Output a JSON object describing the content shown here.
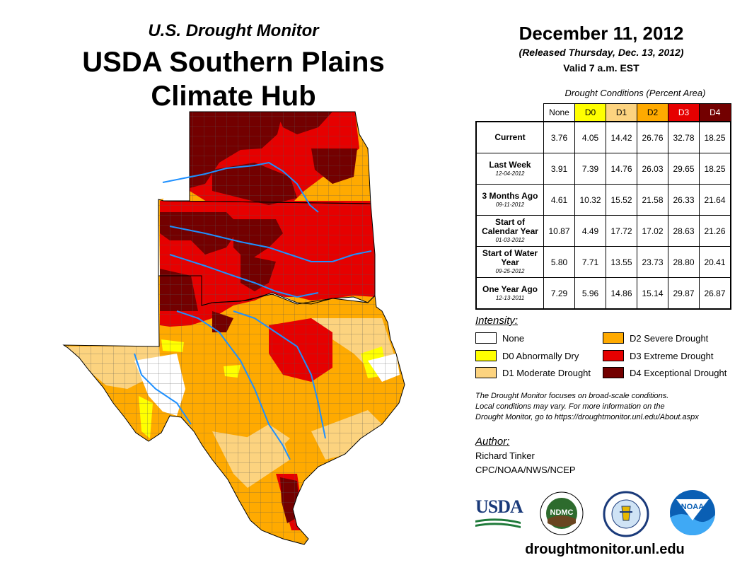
{
  "header": {
    "subtitle": "U.S. Drought Monitor",
    "title_line1": "USDA Southern Plains",
    "title_line2": "Climate Hub"
  },
  "date": {
    "main": "December 11, 2012",
    "released": "(Released Thursday, Dec. 13, 2012)",
    "valid": "Valid 7 a.m. EST"
  },
  "table": {
    "caption": "Drought Conditions (Percent Area)",
    "columns": [
      {
        "label": "None",
        "color": "#ffffff"
      },
      {
        "label": "D0",
        "color": "#ffff00"
      },
      {
        "label": "D1",
        "color": "#fcd37f"
      },
      {
        "label": "D2",
        "color": "#ffaa00"
      },
      {
        "label": "D3",
        "color": "#e60000"
      },
      {
        "label": "D4",
        "color": "#730000"
      }
    ],
    "rows": [
      {
        "label": "Current",
        "sub": "",
        "values": [
          "3.76",
          "4.05",
          "14.42",
          "26.76",
          "32.78",
          "18.25"
        ]
      },
      {
        "label": "Last Week",
        "sub": "12-04-2012",
        "values": [
          "3.91",
          "7.39",
          "14.76",
          "26.03",
          "29.65",
          "18.25"
        ]
      },
      {
        "label": "3 Months Ago",
        "sub": "09-11-2012",
        "values": [
          "4.61",
          "10.32",
          "15.52",
          "21.58",
          "26.33",
          "21.64"
        ]
      },
      {
        "label": "Start of Calendar Year",
        "sub": "01-03-2012",
        "values": [
          "10.87",
          "4.49",
          "17.72",
          "17.02",
          "28.63",
          "21.26"
        ]
      },
      {
        "label": "Start of Water Year",
        "sub": "09-25-2012",
        "values": [
          "5.80",
          "7.71",
          "13.55",
          "23.73",
          "28.80",
          "20.41"
        ]
      },
      {
        "label": "One Year Ago",
        "sub": "12-13-2011",
        "values": [
          "7.29",
          "5.96",
          "14.86",
          "15.14",
          "29.87",
          "26.87"
        ]
      }
    ]
  },
  "legend": {
    "heading": "Intensity:",
    "items": [
      {
        "label": "None",
        "color": "#ffffff"
      },
      {
        "label": "D0 Abnormally Dry",
        "color": "#ffff00"
      },
      {
        "label": "D1 Moderate Drought",
        "color": "#fcd37f"
      },
      {
        "label": "D2 Severe Drought",
        "color": "#ffaa00"
      },
      {
        "label": "D3 Extreme Drought",
        "color": "#e60000"
      },
      {
        "label": "D4 Exceptional Drought",
        "color": "#730000"
      }
    ]
  },
  "note": {
    "line1": "The Drought Monitor focuses on broad-scale conditions.",
    "line2": "Local conditions may vary. For more information on the",
    "line3": "Drought Monitor, go to https://droughtmonitor.unl.edu/About.aspx"
  },
  "author": {
    "heading": "Author:",
    "name": "Richard Tinker",
    "org": "CPC/NOAA/NWS/NCEP"
  },
  "logos": {
    "usda": "USDA",
    "ndmc": "NDMC",
    "noaa": "NOAA"
  },
  "footer_url": "droughtmonitor.unl.edu",
  "colors": {
    "rivers": "#1e90ff",
    "county_lines": "#555555"
  }
}
